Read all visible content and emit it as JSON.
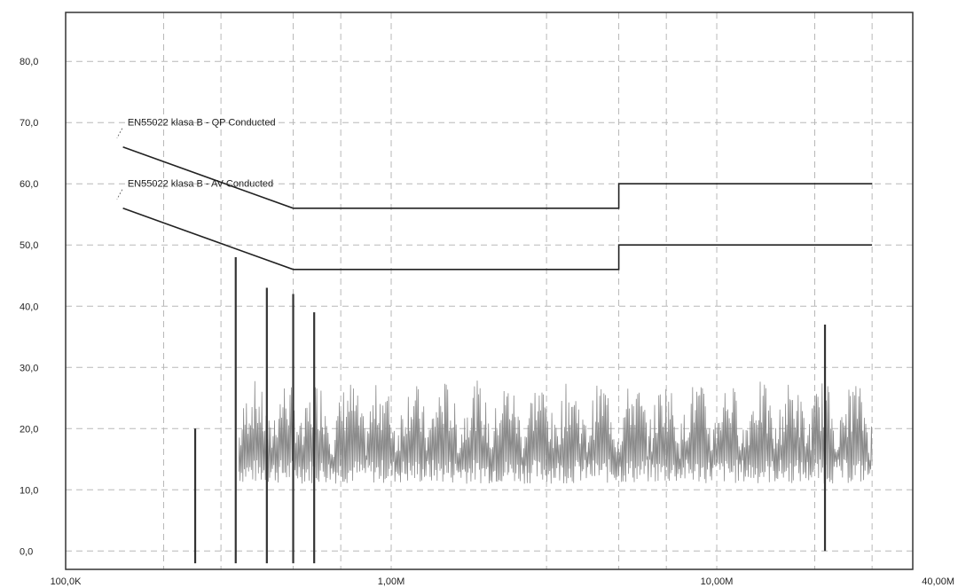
{
  "chart_data": {
    "type": "line",
    "title": "",
    "xlabel": "",
    "ylabel": "",
    "x_scale": "log",
    "xlim": [
      100000,
      40000000
    ],
    "ylim": [
      -3,
      88
    ],
    "grid": true,
    "x_ticks": [
      {
        "value": 100000,
        "label": "100,0K"
      },
      {
        "value": 1000000,
        "label": "1,00M"
      },
      {
        "value": 10000000,
        "label": "10,00M"
      },
      {
        "value": 40000000,
        "label": "40,00M"
      }
    ],
    "x_grid": [
      200000,
      300000,
      500000,
      700000,
      3000000,
      5000000,
      7000000,
      20000000,
      30000000
    ],
    "y_ticks": [
      {
        "value": 0,
        "label": "0,0"
      },
      {
        "value": 10,
        "label": "10,0"
      },
      {
        "value": 20,
        "label": "20,0"
      },
      {
        "value": 30,
        "label": "30,0"
      },
      {
        "value": 40,
        "label": "40,0"
      },
      {
        "value": 50,
        "label": "50,0"
      },
      {
        "value": 60,
        "label": "60,0"
      },
      {
        "value": 70,
        "label": "70,0"
      },
      {
        "value": 80,
        "label": "80,0"
      }
    ],
    "series": [
      {
        "name": "EN55022 klasa B - QP Conducted",
        "x": [
          150000,
          500000,
          5000000,
          5000000,
          30000000
        ],
        "y": [
          66,
          56,
          56,
          60,
          60
        ]
      },
      {
        "name": "EN55022 klasa B - AV Conducted",
        "x": [
          150000,
          500000,
          5000000,
          5000000,
          30000000
        ],
        "y": [
          56,
          46,
          46,
          50,
          50
        ]
      }
    ],
    "spikes": [
      {
        "x": 250000,
        "y": 20
      },
      {
        "x": 333000,
        "y": 48
      },
      {
        "x": 415000,
        "y": 43
      },
      {
        "x": 500000,
        "y": 42
      },
      {
        "x": 580000,
        "y": 39
      },
      {
        "x": 21500000,
        "y": 37
      }
    ],
    "emission_band": {
      "x_start": 340000,
      "x_end": 30000000,
      "y_floor": 11,
      "y_peak": 30
    },
    "limit_labels": [
      {
        "text": "EN55022 klasa B - QP Conducted",
        "x": 155000,
        "y": 69.5
      },
      {
        "text": "EN55022 klasa B - AV Conducted",
        "x": 155000,
        "y": 59.5
      }
    ]
  }
}
